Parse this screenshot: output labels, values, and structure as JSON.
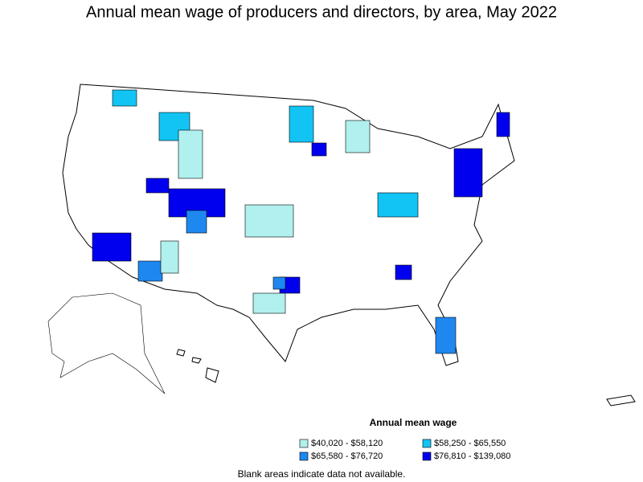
{
  "title": "Annual mean wage of producers and directors, by area, May 2022",
  "legend": {
    "title": "Annual mean wage",
    "items": [
      {
        "label": "$40,020 - $58,120",
        "color": "#b0f0ee"
      },
      {
        "label": "$58,250 - $65,550",
        "color": "#12c4f4"
      },
      {
        "label": "$65,580 - $76,720",
        "color": "#1e88f0"
      },
      {
        "label": "$76,810 - $139,080",
        "color": "#0000ee"
      }
    ]
  },
  "note": "Blank areas indicate data not available."
}
